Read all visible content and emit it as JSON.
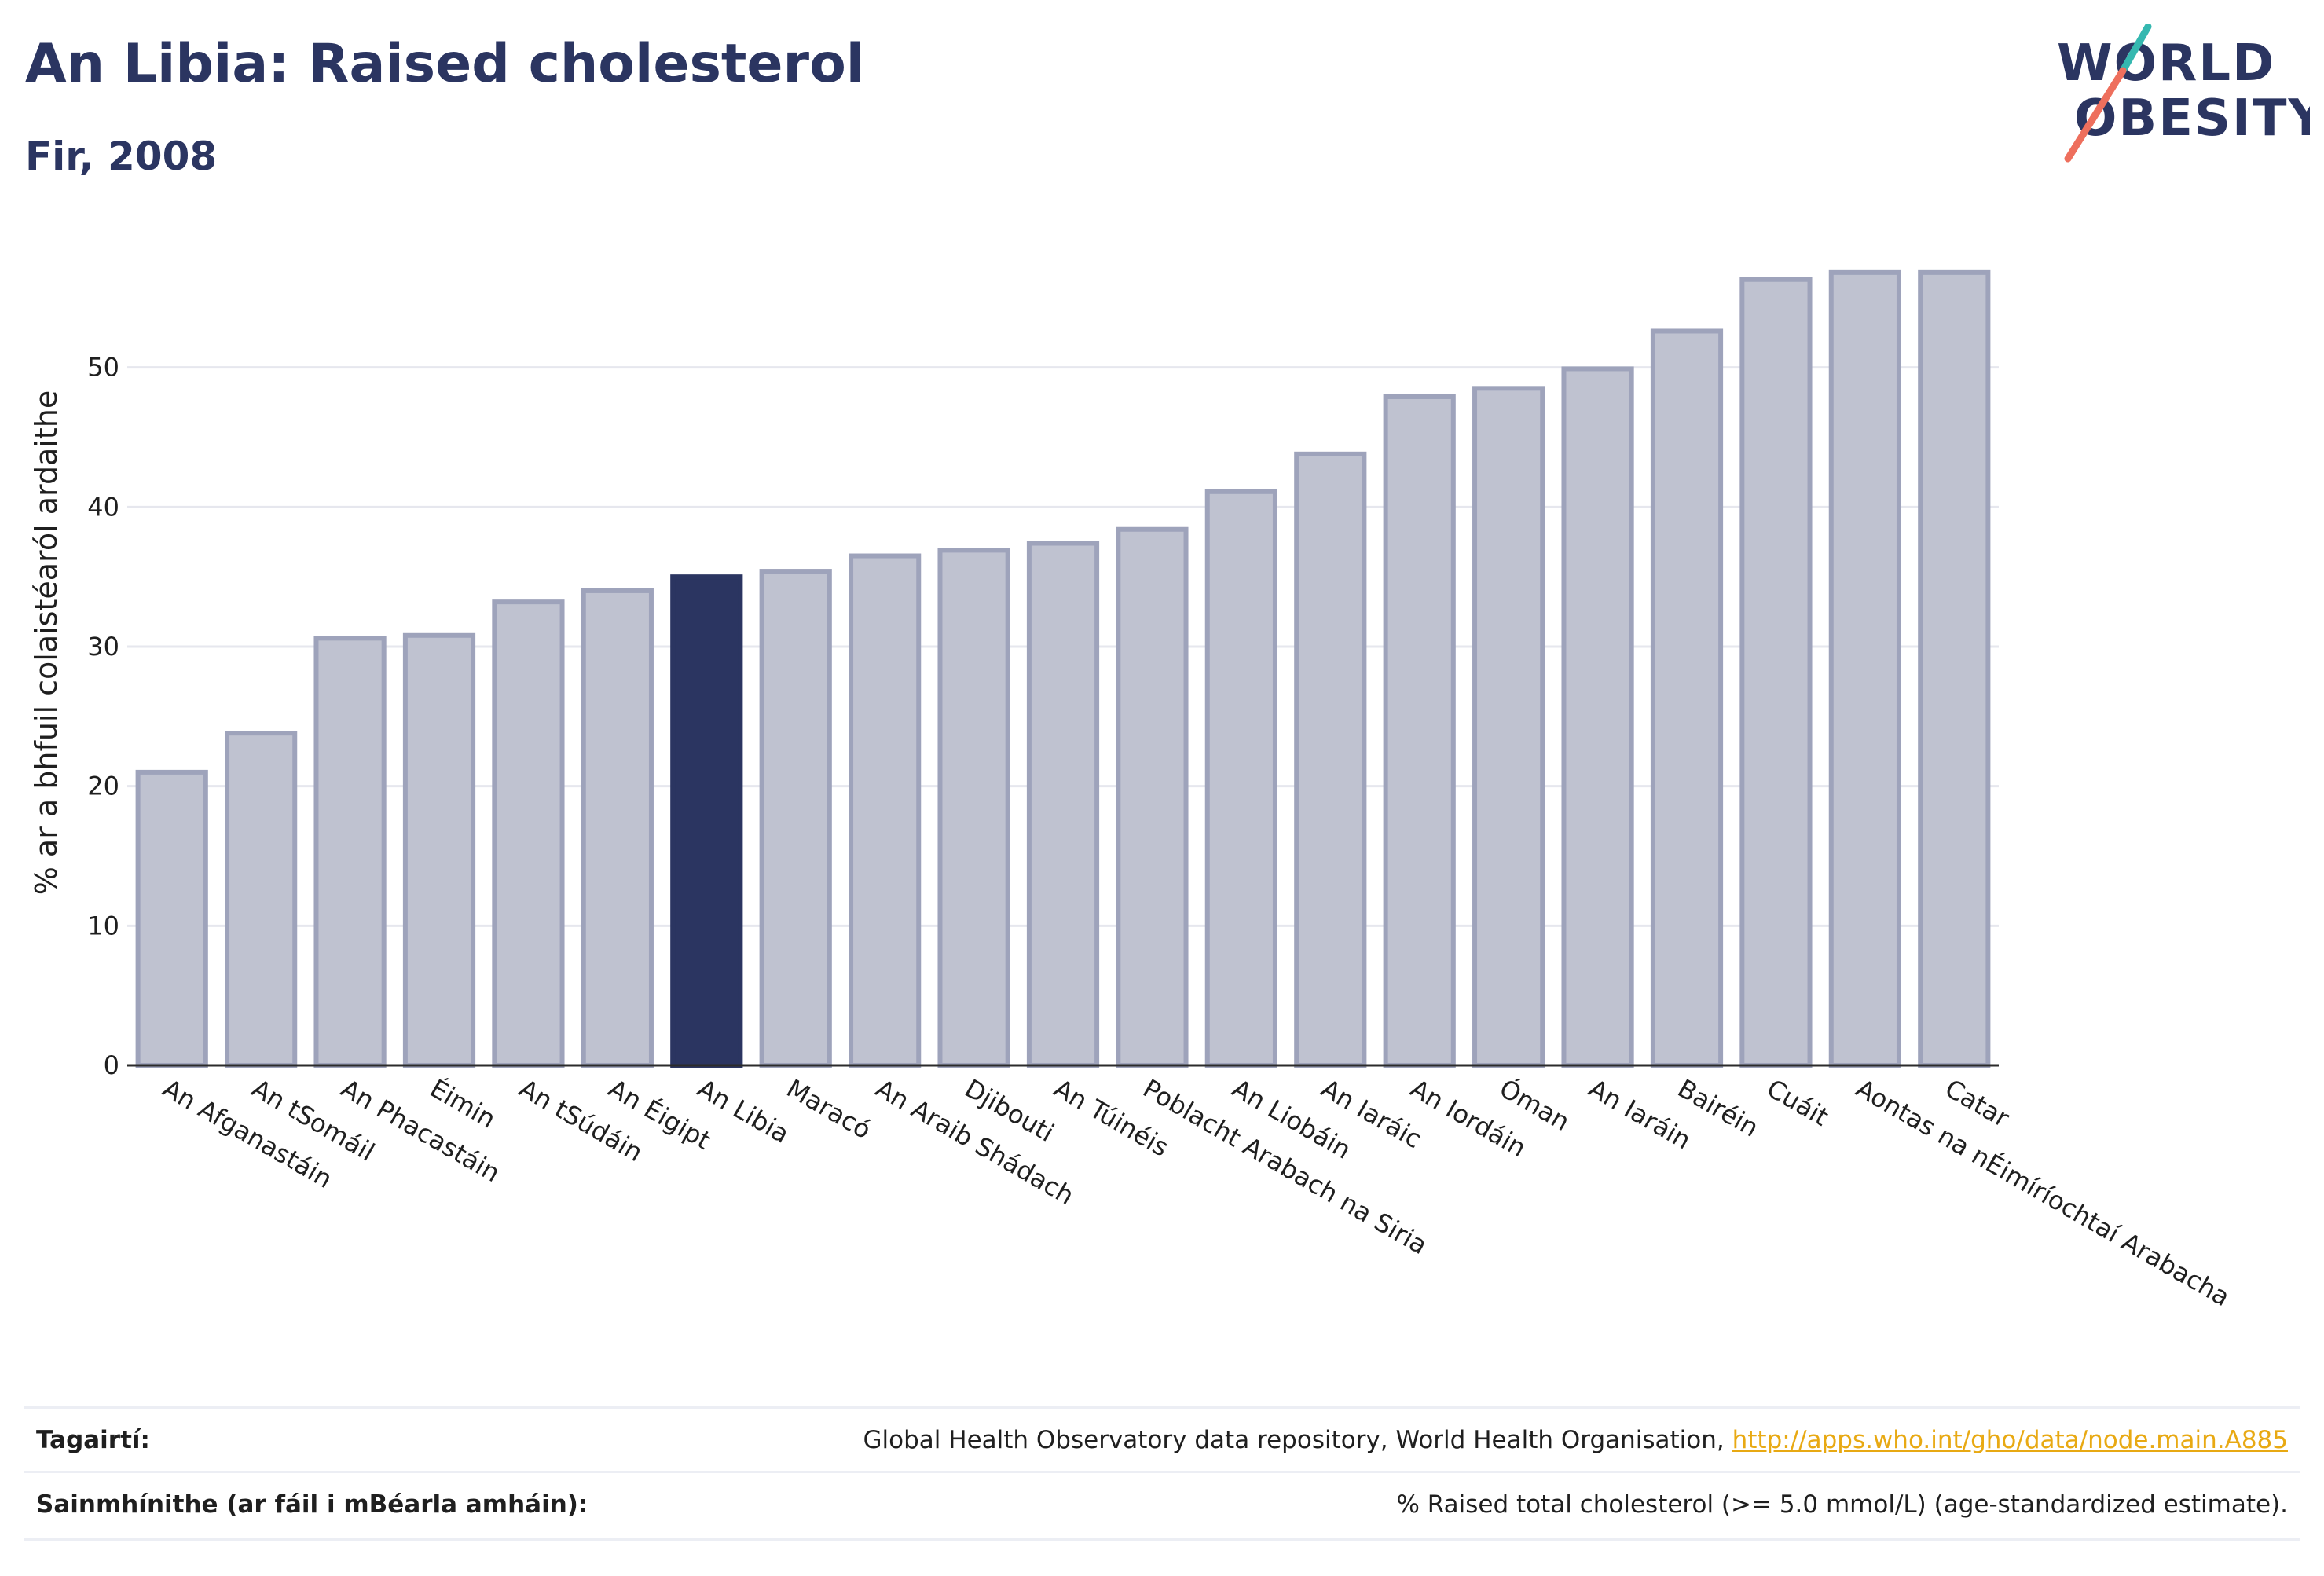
{
  "header": {
    "title": "An Libia: Raised cholesterol",
    "subtitle": "Fir, 2008"
  },
  "logo": {
    "line1": "WORLD",
    "line2": "OBESITY"
  },
  "colors": {
    "highlight": "#2b3561",
    "bar": "#bfc2d0",
    "bar_stroke": "#9ea3bb",
    "grid": "#e6e7ee",
    "logo_teal": "#35b8b0",
    "logo_coral": "#ee6f5d",
    "link": "#e8a913"
  },
  "chart_data": {
    "type": "bar",
    "ylabel": "% ar a bhfuil colaistéaról ardaithe",
    "ylim": [
      0,
      60
    ],
    "yticks": [
      0,
      10,
      20,
      30,
      40,
      50
    ],
    "grid": true,
    "highlight": "An Libia",
    "categories": [
      "An Afganastáin",
      "An tSomáil",
      "An Phacastáin",
      "Éimin",
      "An tSúdáin",
      "An Éigipt",
      "An Libia",
      "Maracó",
      "An Araib Shádach",
      "Djibouti",
      "An Túinéis",
      "Poblacht Arabach na Siria",
      "An Liobáin",
      "An Iaráic",
      "An Iordáin",
      "Óman",
      "An Iaráin",
      "Bairéin",
      "Cuáit",
      "Aontas na nÉimíríochtaí Arabacha",
      "Catar"
    ],
    "values": [
      21.0,
      23.8,
      30.6,
      30.8,
      33.2,
      34.0,
      35.0,
      35.4,
      36.5,
      36.9,
      37.4,
      38.4,
      41.1,
      43.8,
      47.9,
      48.5,
      49.9,
      52.6,
      56.3,
      56.8,
      56.8
    ]
  },
  "footer": {
    "references_label": "Tagairtí:",
    "references_text": "Global Health Observatory data repository, World Health Organisation, ",
    "references_link": "http://apps.who.int/gho/data/node.main.A885",
    "definitions_label": "Sainmhínithe (ar fáil i mBéarla amháin):",
    "definitions_text": "% Raised total cholesterol (>= 5.0 mmol/L) (age-standardized estimate)."
  }
}
